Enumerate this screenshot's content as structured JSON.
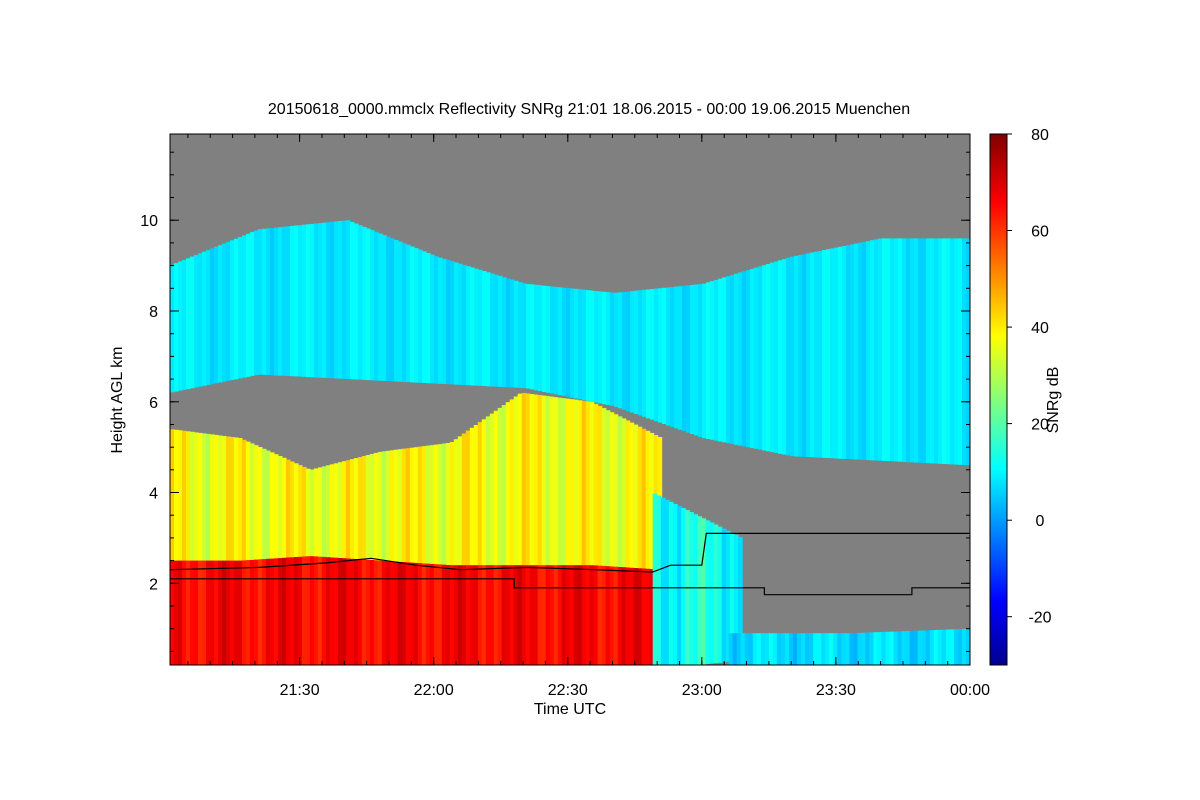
{
  "chart_data": {
    "type": "heatmap",
    "title": "20150618_0000.mmclx Reflectivity SNRg   21:01 18.06.2015 - 00:00 19.06.2015 Muenchen",
    "xlabel": "Time UTC",
    "ylabel": "Height AGL km",
    "colorbar_label": "SNRg dB",
    "x_ticks": [
      "21:30",
      "22:00",
      "22:30",
      "23:00",
      "23:30",
      "00:00"
    ],
    "x_tick_minutes": [
      29,
      59,
      89,
      119,
      149,
      179
    ],
    "xlim_minutes": [
      0,
      179
    ],
    "y_ticks": [
      2,
      4,
      6,
      8,
      10
    ],
    "ylim_km": [
      0.2,
      11.9
    ],
    "colorbar_ticks": [
      80,
      60,
      40,
      20,
      0,
      -20
    ],
    "colorbar_range": [
      -30,
      80
    ],
    "no_signal_color": "#808080",
    "fields": [
      {
        "name": "cirrus-ice-cloud",
        "t_start": 0,
        "t_end": 179,
        "top_km": [
          9.0,
          9.8,
          10.0,
          9.2,
          8.6,
          8.4,
          8.6,
          9.2,
          9.6,
          9.6
        ],
        "base_km": [
          6.2,
          6.6,
          6.5,
          6.4,
          6.3,
          5.9,
          5.2,
          4.8,
          4.7,
          4.6
        ],
        "snr_db": [
          5,
          12
        ]
      },
      {
        "name": "convective-rain-column",
        "t_start": 0,
        "t_end": 110,
        "top_km": [
          5.4,
          5.2,
          4.5,
          4.9,
          5.1,
          6.2,
          6.0,
          5.2
        ],
        "base_km": [
          0.2,
          0.2,
          0.2,
          0.2,
          0.2,
          0.2,
          0.2,
          0.2
        ],
        "snr_db": [
          30,
          45
        ]
      },
      {
        "name": "melting-layer-rain",
        "t_start": 0,
        "t_end": 110,
        "top_km": [
          2.5,
          2.5,
          2.6,
          2.5,
          2.4,
          2.4,
          2.4,
          2.3
        ],
        "base_km": [
          0.2,
          0.2,
          0.2,
          0.2,
          0.2,
          0.2,
          0.2,
          0.2
        ],
        "snr_db": [
          60,
          72
        ]
      },
      {
        "name": "decaying-precipitation",
        "t_start": 108,
        "t_end": 128,
        "top_km": [
          4.0,
          3.5,
          3.0
        ],
        "base_km": [
          0.2,
          0.2,
          0.3
        ],
        "snr_db": [
          5,
          20
        ]
      },
      {
        "name": "boundary-layer-echo",
        "t_start": 125,
        "t_end": 179,
        "top_km": [
          0.9,
          0.9,
          1.0
        ],
        "base_km": [
          0.2,
          0.2,
          0.2
        ],
        "snr_db": [
          2,
          12
        ]
      }
    ],
    "lines": [
      {
        "name": "melting-layer-height",
        "points": [
          [
            0,
            2.3
          ],
          [
            20,
            2.35
          ],
          [
            35,
            2.45
          ],
          [
            45,
            2.55
          ],
          [
            55,
            2.4
          ],
          [
            65,
            2.3
          ],
          [
            80,
            2.35
          ],
          [
            95,
            2.3
          ],
          [
            108,
            2.25
          ],
          [
            112,
            2.4
          ],
          [
            119,
            2.4
          ],
          [
            120,
            3.1
          ],
          [
            179,
            3.1
          ]
        ]
      },
      {
        "name": "lower-reference-line",
        "points": [
          [
            0,
            2.1
          ],
          [
            77,
            2.1
          ],
          [
            77,
            1.9
          ],
          [
            133,
            1.9
          ],
          [
            133,
            1.75
          ],
          [
            166,
            1.75
          ],
          [
            166,
            1.9
          ],
          [
            179,
            1.9
          ]
        ]
      }
    ]
  }
}
